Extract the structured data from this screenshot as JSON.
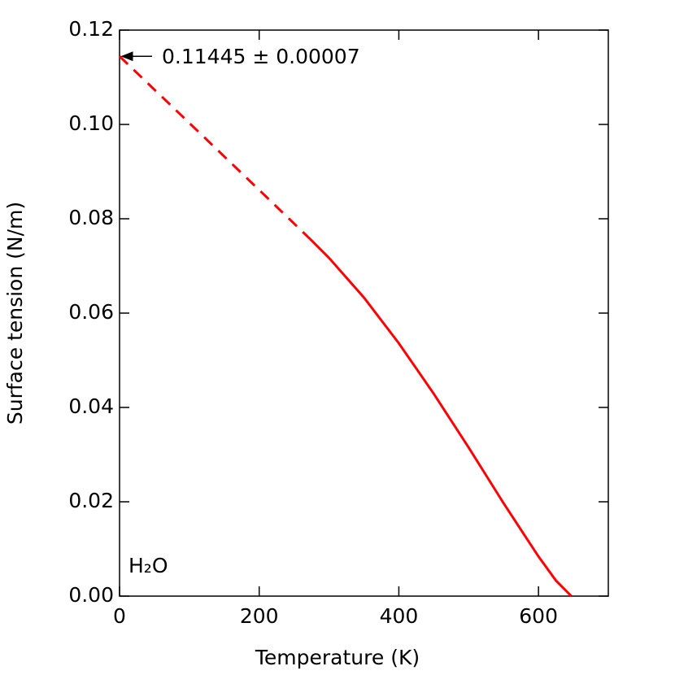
{
  "chart_data": {
    "type": "line",
    "xlabel": "Temperature (K)",
    "ylabel": "Surface tension (N/m)",
    "annotation": "0.11445 ± 0.00007",
    "label": "H₂O",
    "xlim": [
      0,
      700
    ],
    "xticks": [
      0,
      200,
      400,
      600
    ],
    "ylim": [
      0,
      0.12
    ],
    "yticks": [
      {
        "value": 0,
        "label": "0.00"
      },
      0.02,
      0.04,
      0.06,
      0.08,
      {
        "value": 0.1,
        "label": "0.10"
      },
      0.12
    ],
    "series": [
      {
        "color": "#ff0000",
        "dashed": true,
        "x": [
          0,
          100,
          200,
          273
        ],
        "values": [
          0.11445,
          0.1003,
          0.0861,
          0.0757
        ]
      },
      {
        "color": "#ff0000",
        "dashed": false,
        "x": [
          273,
          300,
          350,
          400,
          450,
          500,
          550,
          600,
          625,
          647.096
        ],
        "values": [
          0.0757,
          0.0717,
          0.0633,
          0.0536,
          0.0429,
          0.0315,
          0.0197,
          0.0084,
          0.0033,
          0
        ]
      }
    ]
  }
}
